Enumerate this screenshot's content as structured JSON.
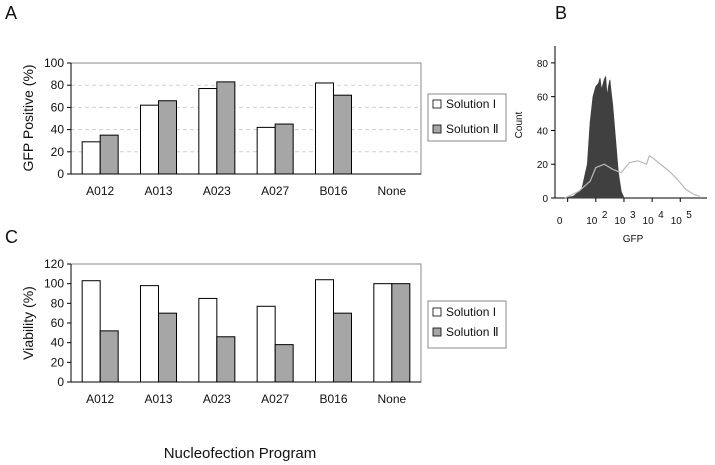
{
  "panels": {
    "a": "A",
    "b": "B",
    "c": "C"
  },
  "colors": {
    "solution1": "#ffffff",
    "solution2": "#a6a6a6",
    "outline": "#000000",
    "gridline": "#d0d0d0",
    "filled_histogram": "#404040",
    "open_histogram": "#b8b8b8"
  },
  "chart_data": [
    {
      "id": "A",
      "type": "bar",
      "title": "",
      "xlabel": "",
      "ylabel": "GFP Positive (%)",
      "ylim": [
        0,
        100
      ],
      "yticks": [
        "0",
        "20",
        "40",
        "60",
        "80",
        "100"
      ],
      "categories": [
        "A012",
        "A013",
        "A023",
        "A027",
        "B016",
        "None"
      ],
      "series": [
        {
          "name": "Solution I",
          "values": [
            29,
            62,
            77,
            42,
            82,
            null
          ]
        },
        {
          "name": "Solution Ⅱ",
          "values": [
            35,
            66,
            83,
            45,
            71,
            null
          ]
        }
      ],
      "legend": "right",
      "grid": true
    },
    {
      "id": "B",
      "type": "area",
      "title": "",
      "xlabel": "GFP",
      "ylabel": "Count",
      "ylim": [
        0,
        90
      ],
      "yticks": [
        "0",
        "20",
        "40",
        "60",
        "80"
      ],
      "xscale": "log",
      "xticks": [
        {
          "base": "0",
          "exp": ""
        },
        {
          "base": "10",
          "exp": "2"
        },
        {
          "base": "10",
          "exp": "3"
        },
        {
          "base": "10",
          "exp": "4"
        },
        {
          "base": "10",
          "exp": "5"
        }
      ],
      "series": [
        {
          "name": "filled",
          "x": [
            0.9,
            1.2,
            1.5,
            1.7,
            1.8,
            1.9,
            2.0,
            2.1,
            2.15,
            2.2,
            2.25,
            2.3,
            2.35,
            2.4,
            2.45,
            2.5,
            2.55,
            2.6,
            2.7,
            2.8,
            2.9,
            3.0
          ],
          "y": [
            0,
            1,
            5,
            20,
            45,
            60,
            66,
            68,
            71,
            64,
            67,
            70,
            72,
            60,
            66,
            70,
            62,
            55,
            35,
            15,
            4,
            0
          ]
        },
        {
          "name": "open",
          "x": [
            0.9,
            1.4,
            1.8,
            2.0,
            2.3,
            2.6,
            2.9,
            3.2,
            3.5,
            3.8,
            3.9,
            4.0,
            4.3,
            4.6,
            4.9,
            5.2,
            5.5,
            5.7
          ],
          "y": [
            0,
            4,
            10,
            18,
            20,
            17,
            15,
            21,
            22,
            20,
            25,
            24,
            20,
            16,
            11,
            5,
            2,
            1
          ]
        }
      ]
    },
    {
      "id": "C",
      "type": "bar",
      "title": "",
      "xlabel": "Nucleofection Program",
      "ylabel": "Viability (%)",
      "ylim": [
        0,
        120
      ],
      "yticks": [
        "0",
        "20",
        "40",
        "60",
        "80",
        "100",
        "120"
      ],
      "categories": [
        "A012",
        "A013",
        "A023",
        "A027",
        "B016",
        "None"
      ],
      "series": [
        {
          "name": "Solution I",
          "values": [
            103,
            98,
            85,
            77,
            104,
            100
          ]
        },
        {
          "name": "Solution Ⅱ",
          "values": [
            52,
            70,
            46,
            38,
            70,
            100
          ]
        }
      ],
      "legend": "right",
      "grid": false
    }
  ]
}
